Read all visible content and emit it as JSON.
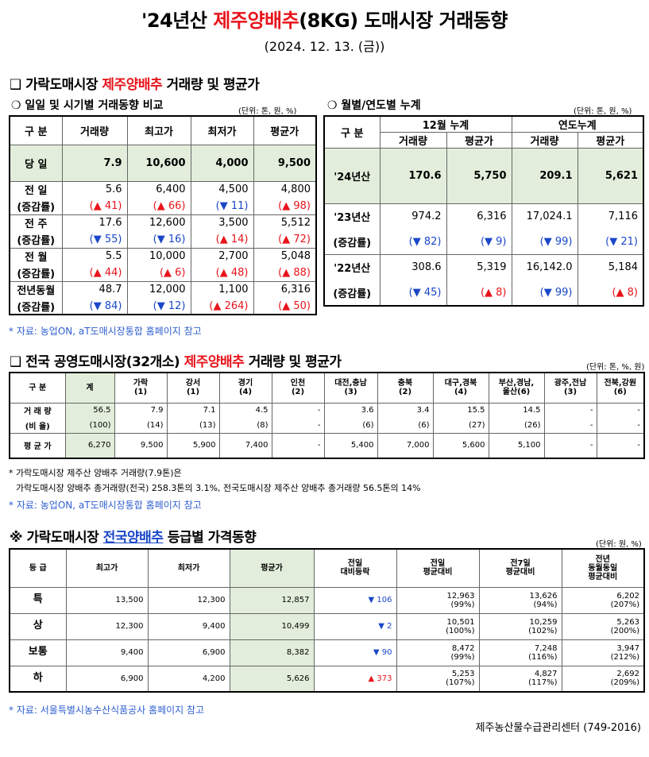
{
  "title": {
    "prefix": "'24년산 ",
    "highlight": "제주양배추",
    "suffix": "(8KG) 도매시장 거래동향"
  },
  "date": "(2024. 12. 13. (금))",
  "s1": {
    "heading_prefix": "❑ 가락도매시장 ",
    "heading_highlight": "제주양배추",
    "heading_suffix": " 거래량 및 평균가",
    "daily": {
      "title": "❍ 일일 및 시기별 거래동향 비교",
      "unit": "(단위: 톤, 원, %)",
      "headers": [
        "구  분",
        "거래량",
        "최고가",
        "최저가",
        "평균가"
      ],
      "today": {
        "label": "당  일",
        "values": [
          "7.9",
          "10,600",
          "4,000",
          "9,500"
        ]
      },
      "rows": [
        {
          "label": "전  일",
          "values": [
            "5.6",
            "6,400",
            "4,500",
            "4,800"
          ],
          "rate_label": "(증감률)",
          "rates": [
            "(▲ 41)",
            "(▲ 66)",
            "(▼ 11)",
            "(▲ 98)"
          ],
          "dirs": [
            "up",
            "up",
            "dn",
            "up"
          ]
        },
        {
          "label": "전  주",
          "values": [
            "17.6",
            "12,600",
            "3,500",
            "5,512"
          ],
          "rate_label": "(증감률)",
          "rates": [
            "(▼ 55)",
            "(▼ 16)",
            "(▲ 14)",
            "(▲ 72)"
          ],
          "dirs": [
            "dn",
            "dn",
            "up",
            "up"
          ]
        },
        {
          "label": "전  월",
          "values": [
            "5.5",
            "10,000",
            "2,700",
            "5,048"
          ],
          "rate_label": "(증감률)",
          "rates": [
            "(▲ 44)",
            "(▲ 6)",
            "(▲ 48)",
            "(▲ 88)"
          ],
          "dirs": [
            "up",
            "up",
            "up",
            "up"
          ]
        },
        {
          "label": "전년동월",
          "values": [
            "48.7",
            "12,000",
            "1,100",
            "6,316"
          ],
          "rate_label": "(증감률)",
          "rates": [
            "(▼ 84)",
            "(▼ 12)",
            "(▲ 264)",
            "(▲ 50)"
          ],
          "dirs": [
            "dn",
            "dn",
            "up",
            "up"
          ]
        }
      ]
    },
    "monthly": {
      "title": "❍ 월별/연도별 누계",
      "unit": "(단위: 톤, 원, %)",
      "h_gubun": "구  분",
      "h_dec": "12월 누계",
      "h_year": "연도누계",
      "sub": [
        "거래량",
        "평균가",
        "거래량",
        "평균가"
      ],
      "y24": {
        "label": "'24년산",
        "values": [
          "170.6",
          "5,750",
          "209.1",
          "5,621"
        ]
      },
      "y23": {
        "label": "'23년산",
        "values": [
          "974.2",
          "6,316",
          "17,024.1",
          "7,116"
        ],
        "rate_label": "(증감률)",
        "rates": [
          "(▼ 82)",
          "(▼ 9)",
          "(▼ 99)",
          "(▼ 21)"
        ],
        "dirs": [
          "dn",
          "dn",
          "dn",
          "dn"
        ]
      },
      "y22": {
        "label": "'22년산",
        "values": [
          "308.6",
          "5,319",
          "16,142.0",
          "5,184"
        ],
        "rate_label": "(증감률)",
        "rates": [
          "(▼ 45)",
          "(▲ 8)",
          "(▼ 99)",
          "(▲ 8)"
        ],
        "dirs": [
          "dn",
          "up",
          "dn",
          "up"
        ]
      }
    },
    "note": "* 자료: 농업ON, aT도매시장통합 홈페이지 참고"
  },
  "s2": {
    "heading_prefix": "❑ 전국 공영도매시장(32개소) ",
    "heading_highlight": "제주양배추",
    "heading_suffix": " 거래량 및 평균가",
    "unit": "(단위: 톤, %, 원)",
    "headers": [
      [
        "구  분"
      ],
      [
        "계"
      ],
      [
        "가락",
        "(1)"
      ],
      [
        "강서",
        "(1)"
      ],
      [
        "경기",
        "(4)"
      ],
      [
        "인천",
        "(2)"
      ],
      [
        "대전,충남",
        "(3)"
      ],
      [
        "충북",
        "(2)"
      ],
      [
        "대구,경북",
        "(4)"
      ],
      [
        "부산,경남,",
        "울산(6)"
      ],
      [
        "광주,전남",
        "(3)"
      ],
      [
        "전북,강원",
        "(6)"
      ]
    ],
    "vol_label": "거 래 량",
    "vol": [
      "56.5",
      "7.9",
      "7.1",
      "4.5",
      "-",
      "3.6",
      "3.4",
      "15.5",
      "14.5",
      "-",
      "-"
    ],
    "ratio_label": "(비 율)",
    "ratio": [
      "(100)",
      "(14)",
      "(13)",
      "(8)",
      "-",
      "(6)",
      "(6)",
      "(27)",
      "(26)",
      "-",
      "-"
    ],
    "avg_label": "평 균 가",
    "avg": [
      "6,270",
      "9,500",
      "5,900",
      "7,400",
      "-",
      "5,400",
      "7,000",
      "5,600",
      "5,100",
      "-",
      "-"
    ],
    "fn1": "* 가락도매시장 제주산 양배추 거래량(7.9톤)은",
    "fn2": "가락도매시장 양배추 총거래량(전국) 258.3톤의 3.1%, 전국도매시장 제주산 양배추 총거래량 56.5톤의 14%",
    "note": "* 자료: 농업ON, aT도매시장통합 홈페이지 참고"
  },
  "s3": {
    "heading_prefix": "※ 가락도매시장 ",
    "heading_highlight": "전국양배추",
    "heading_suffix": " 등급별 가격동향",
    "unit": "(단위: 원, %)",
    "headers": [
      [
        "등  급"
      ],
      [
        "최고가"
      ],
      [
        "최저가"
      ],
      [
        "평균가"
      ],
      [
        "전일",
        "대비등락"
      ],
      [
        "전일",
        "평균대비"
      ],
      [
        "전7일",
        "평균대비"
      ],
      [
        "전년",
        "동월동일",
        "평균대비"
      ]
    ],
    "rows": [
      {
        "grade": "특",
        "max": "13,500",
        "min": "12,300",
        "avg": "12,857",
        "chg": "▼ 106",
        "dir": "dn",
        "p1": "12,963",
        "p1r": "(99%)",
        "p7": "13,626",
        "p7r": "(94%)",
        "py": "6,202",
        "pyr": "(207%)"
      },
      {
        "grade": "상",
        "max": "12,300",
        "min": "9,400",
        "avg": "10,499",
        "chg": "▼ 2",
        "dir": "dn",
        "p1": "10,501",
        "p1r": "(100%)",
        "p7": "10,259",
        "p7r": "(102%)",
        "py": "5,263",
        "pyr": "(200%)"
      },
      {
        "grade": "보통",
        "max": "9,400",
        "min": "6,900",
        "avg": "8,382",
        "chg": "▼ 90",
        "dir": "dn",
        "p1": "8,472",
        "p1r": "(99%)",
        "p7": "7,248",
        "p7r": "(116%)",
        "py": "3,947",
        "pyr": "(212%)"
      },
      {
        "grade": "하",
        "max": "6,900",
        "min": "4,200",
        "avg": "5,626",
        "chg": "▲ 373",
        "dir": "up",
        "p1": "5,253",
        "p1r": "(107%)",
        "p7": "4,827",
        "p7r": "(117%)",
        "py": "2,692",
        "pyr": "(209%)"
      }
    ],
    "note": "* 자료: 서울특별시농수산식품공사 홈페이지 참고"
  },
  "footer": "제주농산물수급관리센터 (749-2016)"
}
